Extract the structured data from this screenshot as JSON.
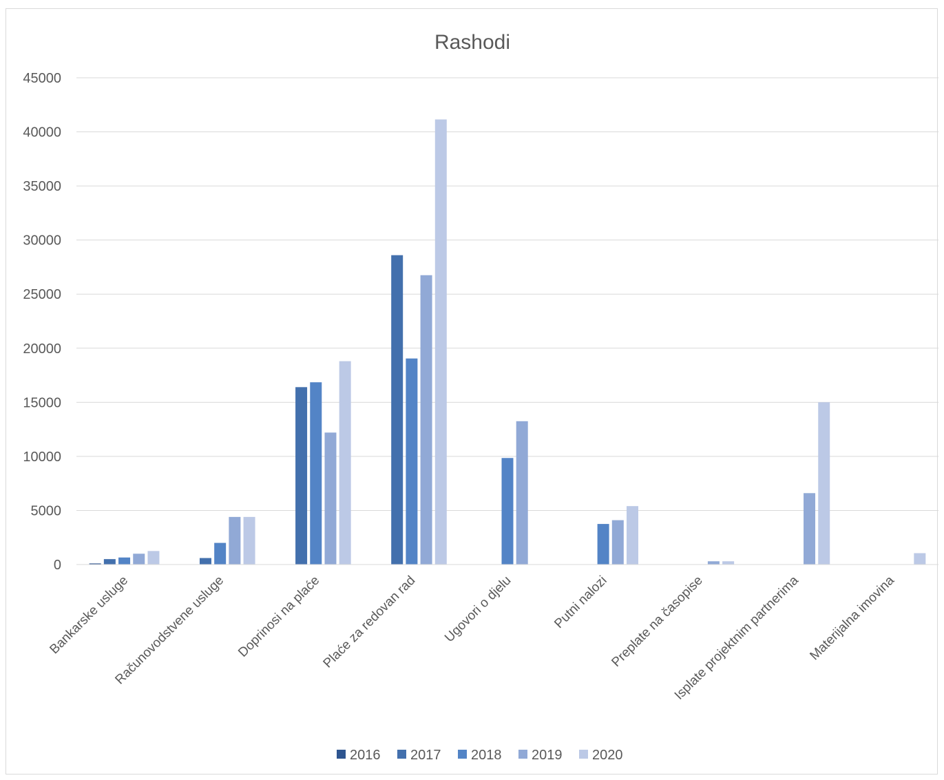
{
  "chart_data": {
    "type": "bar",
    "title": "Rashodi",
    "xlabel": "",
    "ylabel": "",
    "ylim": [
      0,
      45000
    ],
    "yticks": [
      0,
      5000,
      10000,
      15000,
      20000,
      25000,
      30000,
      35000,
      40000,
      45000
    ],
    "grid": true,
    "legend_position": "bottom",
    "categories": [
      "Bankarske usluge",
      "Računovodstvene usluge",
      "Doprinosi na plaće",
      "Plaće za redovan rad",
      "Ugovori o djelu",
      "Putni nalozi",
      "Preplate na časopise",
      "Isplate projektnim partnerima",
      "Materijalna imovina"
    ],
    "series": [
      {
        "name": "2016",
        "color": "#2e5590",
        "values": [
          100,
          0,
          0,
          0,
          0,
          0,
          0,
          0,
          0
        ]
      },
      {
        "name": "2017",
        "color": "#4370ad",
        "values": [
          500,
          600,
          16400,
          28600,
          0,
          0,
          0,
          0,
          0
        ]
      },
      {
        "name": "2018",
        "color": "#5384c6",
        "values": [
          650,
          2000,
          16850,
          19050,
          9850,
          3750,
          0,
          0,
          0
        ]
      },
      {
        "name": "2019",
        "color": "#91a9d6",
        "values": [
          1000,
          4400,
          12200,
          26750,
          13250,
          4100,
          300,
          6600,
          0
        ]
      },
      {
        "name": "2020",
        "color": "#bcc9e6",
        "values": [
          1250,
          4400,
          18800,
          41150,
          0,
          5400,
          300,
          15000,
          1050
        ]
      }
    ]
  }
}
